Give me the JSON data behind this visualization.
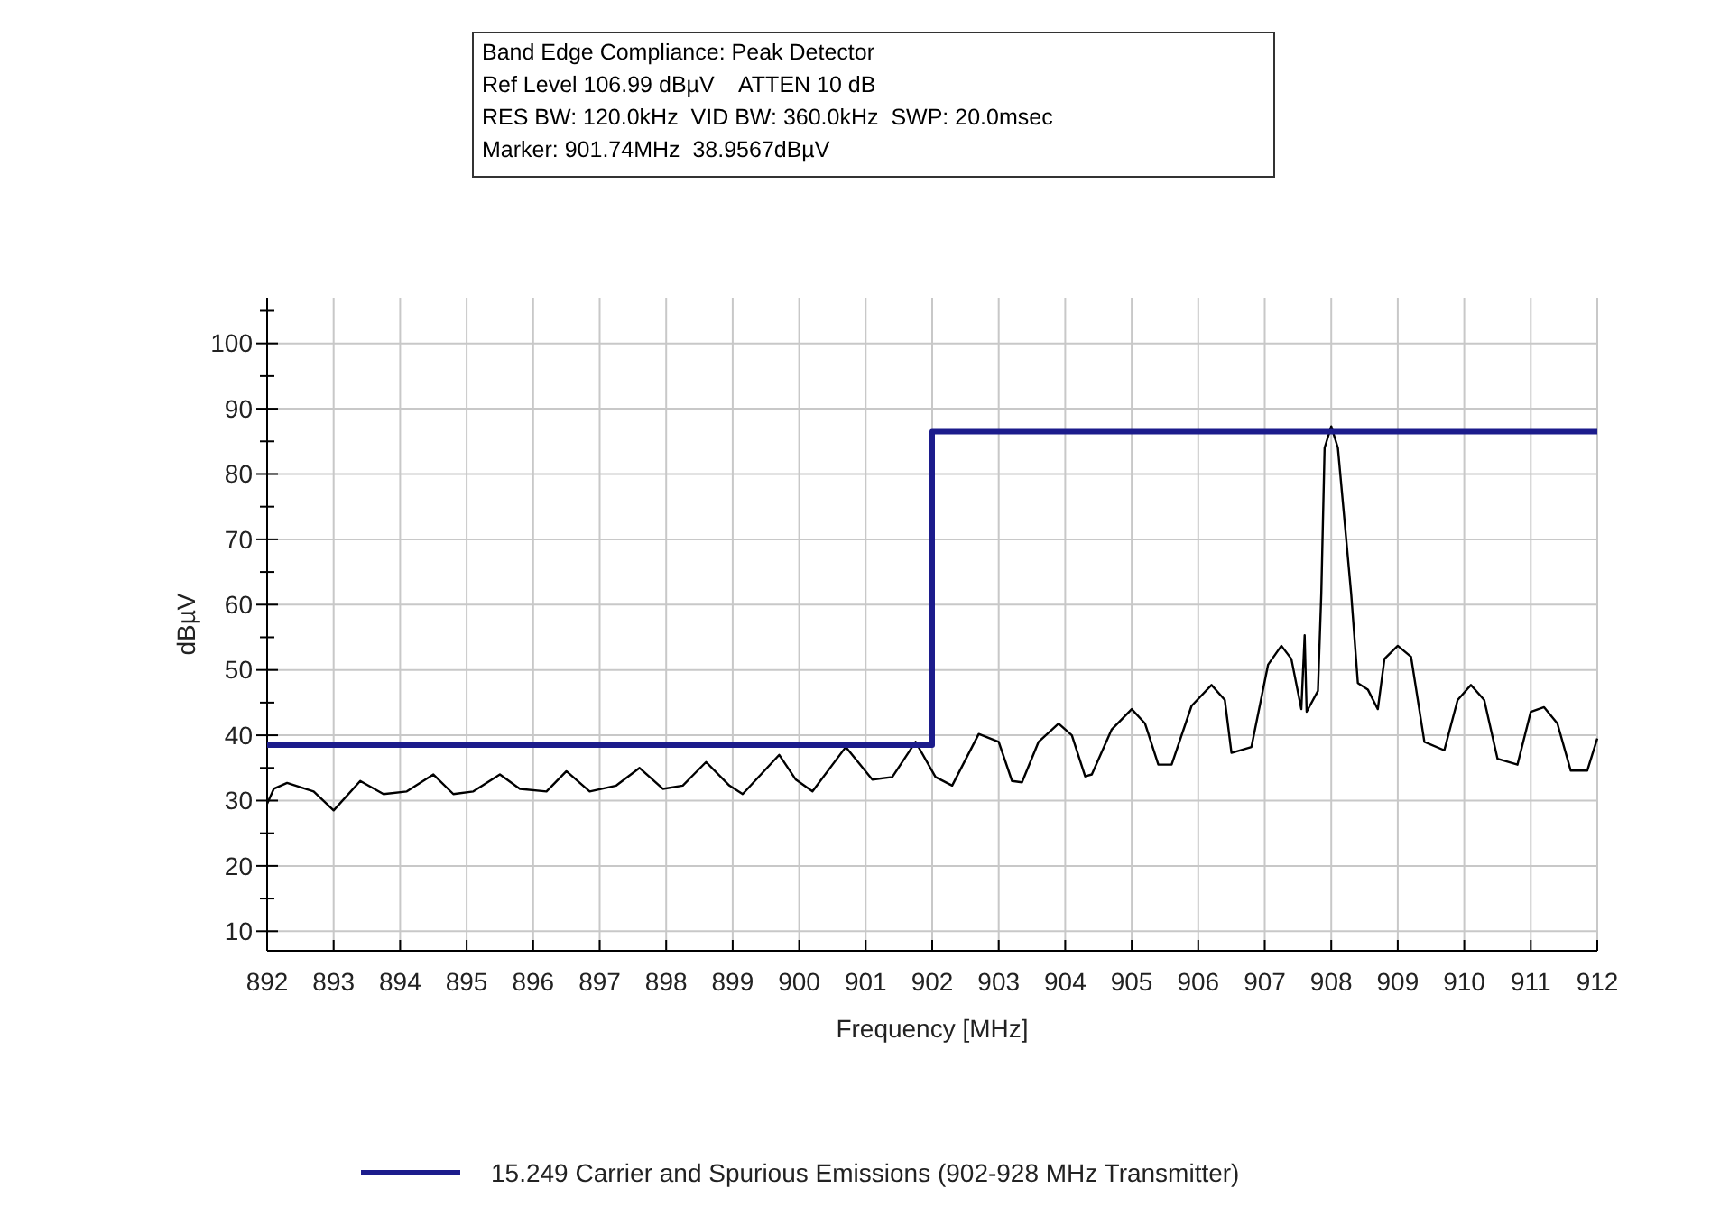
{
  "chart_data": {
    "type": "line",
    "title": "Band Edge Compliance: Peak Detector",
    "annotations": [
      "Ref Level 106.99 dBµV    ATTEN 10 dB",
      "RES BW: 120.0kHz  VID BW: 360.0kHz  SWP: 20.0msec",
      "Marker: 901.74MHz  38.9567dBµV"
    ],
    "xlabel": "Frequency [MHz]",
    "ylabel": "dBµV",
    "xlim": [
      892,
      912
    ],
    "xticks": [
      892,
      893,
      894,
      895,
      896,
      897,
      898,
      899,
      900,
      901,
      902,
      903,
      904,
      905,
      906,
      907,
      908,
      909,
      910,
      911,
      912
    ],
    "ylim": [
      7,
      107
    ],
    "yticks": [
      10,
      {
        "value": 15,
        "label": null
      },
      20,
      {
        "value": 25,
        "label": null
      },
      30,
      {
        "value": 35,
        "label": null
      },
      40,
      {
        "value": 45,
        "label": null
      },
      50,
      {
        "value": 55,
        "label": null
      },
      60,
      {
        "value": 65,
        "label": null
      },
      70,
      {
        "value": 75,
        "label": null
      },
      80,
      {
        "value": 85,
        "label": null
      },
      90,
      {
        "value": 95,
        "label": null
      },
      100,
      {
        "value": 105,
        "label": null
      }
    ],
    "grid": true,
    "legend": "bottom",
    "series": [
      {
        "color": "#000000",
        "x": [
          892,
          892.1,
          892.3,
          892.7,
          893,
          893.4,
          893.75,
          894.1,
          894.5,
          894.8,
          895.1,
          895.5,
          895.8,
          896.2,
          896.5,
          896.85,
          897.25,
          897.6,
          897.95,
          898.25,
          898.6,
          898.95,
          899.15,
          899.7,
          899.95,
          900.2,
          900.7,
          901.1,
          901.4,
          901.75,
          902.05,
          902.3,
          902.7,
          903,
          903.2,
          903.35,
          903.6,
          903.9,
          904.1,
          904.3,
          904.4,
          904.7,
          905,
          905.2,
          905.4,
          905.6,
          905.9,
          906.2,
          906.4,
          906.5,
          906.8,
          907.05,
          907.25,
          907.4,
          907.55,
          907.6,
          907.63,
          907.8,
          907.85,
          907.9,
          908,
          908.1,
          908.3,
          908.4,
          908.55,
          908.7,
          908.8,
          909,
          909.2,
          909.4,
          909.7,
          909.9,
          910.1,
          910.3,
          910.5,
          910.8,
          911,
          911.2,
          911.4,
          911.6,
          911.85,
          912
        ],
        "values": [
          29.5,
          31.8,
          32.7,
          31.4,
          28.5,
          33,
          31,
          31.4,
          34,
          31,
          31.4,
          34,
          31.8,
          31.4,
          34.5,
          31.4,
          32.3,
          35,
          31.8,
          32.3,
          35.9,
          32.3,
          31,
          37,
          33.2,
          31.4,
          38.2,
          33.2,
          33.6,
          39,
          33.6,
          32.3,
          40.2,
          39,
          33,
          32.8,
          39,
          41.8,
          40,
          33.7,
          34,
          40.9,
          44,
          41.8,
          35.5,
          35.5,
          44.5,
          47.7,
          45.4,
          37.3,
          38.2,
          50.8,
          53.7,
          51.7,
          44,
          55.3,
          43.6,
          46.8,
          61.6,
          84,
          87.3,
          84,
          61.6,
          48,
          47,
          44,
          51.7,
          53.7,
          52,
          39,
          37.7,
          45.4,
          47.7,
          45.4,
          36.4,
          35.5,
          43.6,
          44.3,
          41.8,
          34.6,
          34.6,
          39.5
        ]
      },
      {
        "type": "step",
        "name": "15.249 Carrier and Spurious Emissions (902-928 MHz Transmitter)",
        "color": "#1c1c8c",
        "x": [
          892,
          902,
          912
        ],
        "values": [
          38.5,
          86.5,
          86.5
        ]
      }
    ]
  }
}
